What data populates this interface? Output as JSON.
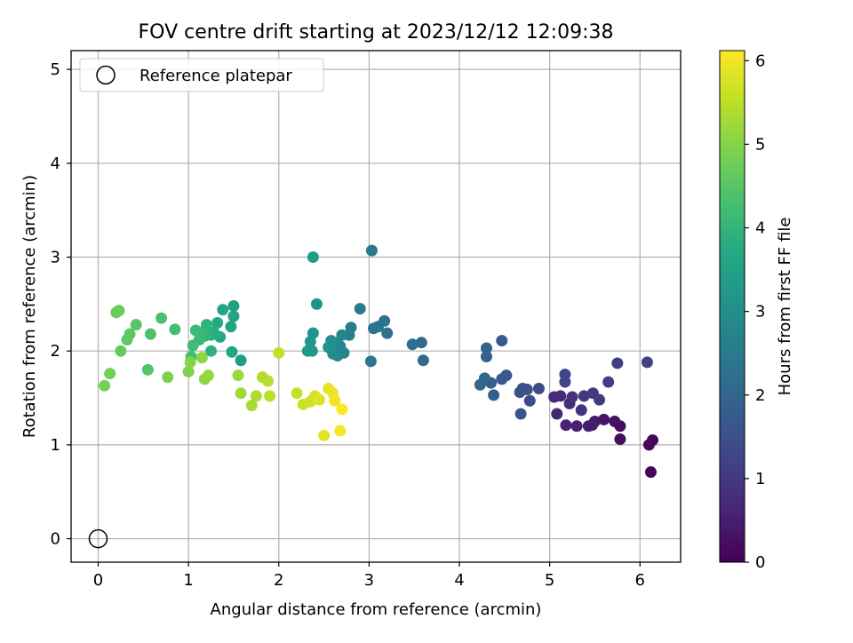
{
  "chart_data": {
    "type": "scatter",
    "title": "FOV centre drift starting at 2023/12/12 12:09:38",
    "xlabel": "Angular distance from reference (arcmin)",
    "ylabel": "Rotation from reference (arcmin)",
    "xlim": [
      -0.3,
      6.45
    ],
    "ylim": [
      -0.25,
      5.2
    ],
    "xticks": [
      "0",
      "1",
      "2",
      "3",
      "4",
      "5",
      "6"
    ],
    "yticks": [
      "0",
      "1",
      "2",
      "3",
      "4",
      "5"
    ],
    "grid": true,
    "legend": {
      "placement": "top-left",
      "entries": [
        "Reference platepar"
      ]
    },
    "reference_point": {
      "x": 0,
      "y": 0
    },
    "colorbar": {
      "label": "Hours from first FF file",
      "range": [
        0,
        6.12
      ],
      "ticks": [
        "0",
        "1",
        "2",
        "3",
        "4",
        "5",
        "6"
      ],
      "colormap": "viridis"
    },
    "points": [
      [
        6.12,
        0.71,
        0.05
      ],
      [
        6.14,
        1.05,
        0.1
      ],
      [
        6.1,
        1.0,
        0.15
      ],
      [
        5.78,
        1.06,
        0.2
      ],
      [
        5.78,
        1.2,
        0.25
      ],
      [
        5.72,
        1.25,
        0.3
      ],
      [
        5.6,
        1.27,
        0.35
      ],
      [
        5.5,
        1.25,
        0.4
      ],
      [
        5.47,
        1.21,
        0.45
      ],
      [
        5.43,
        1.2,
        0.5
      ],
      [
        5.3,
        1.2,
        0.55
      ],
      [
        5.18,
        1.21,
        0.6
      ],
      [
        5.08,
        1.33,
        0.65
      ],
      [
        5.05,
        1.51,
        0.7
      ],
      [
        5.12,
        1.52,
        0.75
      ],
      [
        5.22,
        1.44,
        0.8
      ],
      [
        5.25,
        1.51,
        0.85
      ],
      [
        5.35,
        1.37,
        0.9
      ],
      [
        5.38,
        1.52,
        0.95
      ],
      [
        5.48,
        1.55,
        1.0
      ],
      [
        5.55,
        1.48,
        1.05
      ],
      [
        5.65,
        1.67,
        1.1
      ],
      [
        5.75,
        1.87,
        1.15
      ],
      [
        6.08,
        1.88,
        1.2
      ],
      [
        5.17,
        1.75,
        1.25
      ],
      [
        5.17,
        1.67,
        1.3
      ],
      [
        4.88,
        1.6,
        1.35
      ],
      [
        4.78,
        1.47,
        1.4
      ],
      [
        4.7,
        1.6,
        1.45
      ],
      [
        4.67,
        1.56,
        1.5
      ],
      [
        4.75,
        1.59,
        1.55
      ],
      [
        4.68,
        1.33,
        1.6
      ],
      [
        4.52,
        1.74,
        1.65
      ],
      [
        4.47,
        2.11,
        1.7
      ],
      [
        4.47,
        1.7,
        1.75
      ],
      [
        4.35,
        1.66,
        1.8
      ],
      [
        4.38,
        1.53,
        1.85
      ],
      [
        4.3,
        1.94,
        1.9
      ],
      [
        4.3,
        2.03,
        1.95
      ],
      [
        4.28,
        1.71,
        2.0
      ],
      [
        4.23,
        1.64,
        2.05
      ],
      [
        3.6,
        1.9,
        2.1
      ],
      [
        3.58,
        2.09,
        2.15
      ],
      [
        3.48,
        2.07,
        2.2
      ],
      [
        3.2,
        2.19,
        2.25
      ],
      [
        3.17,
        2.32,
        2.3
      ],
      [
        3.1,
        2.26,
        2.35
      ],
      [
        3.05,
        2.24,
        2.4
      ],
      [
        3.02,
        1.89,
        2.45
      ],
      [
        3.03,
        3.07,
        2.5
      ],
      [
        2.9,
        2.45,
        2.55
      ],
      [
        2.8,
        2.25,
        2.6
      ],
      [
        2.78,
        2.17,
        2.65
      ],
      [
        2.72,
        1.98,
        2.7
      ],
      [
        2.7,
        2.17,
        2.75
      ],
      [
        2.68,
        2.05,
        2.8
      ],
      [
        2.65,
        1.95,
        2.85
      ],
      [
        2.62,
        2.09,
        2.9
      ],
      [
        2.6,
        1.97,
        2.95
      ],
      [
        2.58,
        2.11,
        3.0
      ],
      [
        2.55,
        2.04,
        3.05
      ],
      [
        2.42,
        2.5,
        3.1
      ],
      [
        2.38,
        2.19,
        3.15
      ],
      [
        2.37,
        2.0,
        3.2
      ],
      [
        2.35,
        2.1,
        3.25
      ],
      [
        2.32,
        2.0,
        3.3
      ],
      [
        2.38,
        3.0,
        3.35
      ],
      [
        1.58,
        1.9,
        3.4
      ],
      [
        1.5,
        2.48,
        3.45
      ],
      [
        1.5,
        2.37,
        3.5
      ],
      [
        1.47,
        2.26,
        3.55
      ],
      [
        1.48,
        1.99,
        3.6
      ],
      [
        1.38,
        2.44,
        3.65
      ],
      [
        1.35,
        2.15,
        3.7
      ],
      [
        1.32,
        2.3,
        3.75
      ],
      [
        1.28,
        2.2,
        3.8
      ],
      [
        1.25,
        2.17,
        3.85
      ],
      [
        1.25,
        2.0,
        3.9
      ],
      [
        1.2,
        2.28,
        3.95
      ],
      [
        1.18,
        2.16,
        4.0
      ],
      [
        1.15,
        2.2,
        4.05
      ],
      [
        1.12,
        2.12,
        4.1
      ],
      [
        1.08,
        2.22,
        4.15
      ],
      [
        1.05,
        2.06,
        4.2
      ],
      [
        1.03,
        1.94,
        4.25
      ],
      [
        0.85,
        2.23,
        4.3
      ],
      [
        0.7,
        2.35,
        4.35
      ],
      [
        0.58,
        2.18,
        4.4
      ],
      [
        0.55,
        1.8,
        4.45
      ],
      [
        0.42,
        2.28,
        4.5
      ],
      [
        0.35,
        2.18,
        4.55
      ],
      [
        0.32,
        2.12,
        4.6
      ],
      [
        0.25,
        2.0,
        4.65
      ],
      [
        0.23,
        2.43,
        4.7
      ],
      [
        0.2,
        2.41,
        4.75
      ],
      [
        0.13,
        1.76,
        4.8
      ],
      [
        0.07,
        1.63,
        4.85
      ],
      [
        0.77,
        1.72,
        4.9
      ],
      [
        1.0,
        1.78,
        4.95
      ],
      [
        1.02,
        1.88,
        5.0
      ],
      [
        1.15,
        1.93,
        5.05
      ],
      [
        1.18,
        1.7,
        5.1
      ],
      [
        1.22,
        1.74,
        5.15
      ],
      [
        1.55,
        1.74,
        5.2
      ],
      [
        1.58,
        1.55,
        5.25
      ],
      [
        1.7,
        1.42,
        5.3
      ],
      [
        1.75,
        1.52,
        5.35
      ],
      [
        1.82,
        1.72,
        5.4
      ],
      [
        1.88,
        1.68,
        5.45
      ],
      [
        1.9,
        1.52,
        5.5
      ],
      [
        2.0,
        1.98,
        5.55
      ],
      [
        2.2,
        1.55,
        5.6
      ],
      [
        2.27,
        1.43,
        5.65
      ],
      [
        2.35,
        1.46,
        5.7
      ],
      [
        2.4,
        1.52,
        5.75
      ],
      [
        2.45,
        1.48,
        5.8
      ],
      [
        2.5,
        1.1,
        5.85
      ],
      [
        2.55,
        1.6,
        5.9
      ],
      [
        2.6,
        1.55,
        5.95
      ],
      [
        2.62,
        1.47,
        6.0
      ],
      [
        2.68,
        1.15,
        6.05
      ],
      [
        2.7,
        1.38,
        6.1
      ]
    ]
  }
}
